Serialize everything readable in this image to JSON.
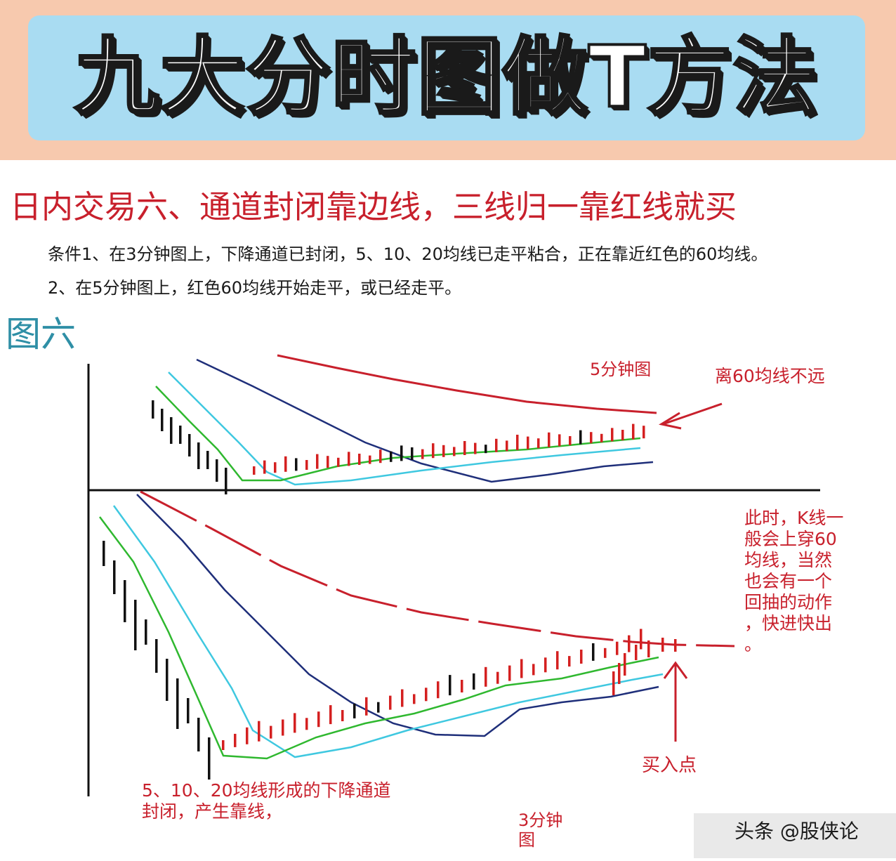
{
  "header": {
    "title": "九大分时图做T方法"
  },
  "subtitle": "日内交易六、通道封闭靠边线，三线归一靠红线就买",
  "conditions": {
    "line1": "条件1、在3分钟图上，下降通道已封闭，5、10、20均线已走平粘合，正在靠近红色的60均线。",
    "line2": "2、在5分钟图上，红色60均线开始走平，或已经走平。"
  },
  "figure_label": "图六",
  "colors": {
    "ma5": "#2fb82f",
    "ma10": "#3fc8e0",
    "ma20": "#1f2f7a",
    "ma60": "#c8202c",
    "candle_up": "#d42020",
    "candle_down": "#111111",
    "annotation": "#c8202c"
  },
  "chart_data": [
    {
      "type": "line",
      "title": "5分钟图",
      "annotations": [
        "离60均线不远"
      ],
      "series_colors": {
        "5/10/20均线": [
          "#2fb82f",
          "#3fc8e0",
          "#1f2f7a"
        ],
        "60均线": "#c8202c"
      }
    },
    {
      "type": "line",
      "title": "3分钟图",
      "annotations": [
        "此时，K线一般会上穿60均线，当然也会有一个回抽的动作，快进快出。",
        "买入点",
        "5、10、20均线形成的下降通道封闭，产生靠线，"
      ],
      "series_colors": {
        "5/10/20均线": [
          "#2fb82f",
          "#3fc8e0",
          "#1f2f7a"
        ],
        "60均线": "#c8202c"
      }
    }
  ],
  "annotations": {
    "top_label": "5分钟图",
    "top_note": "离60均线不远",
    "side_note_lines": [
      "此时，K线一",
      "般会上穿60",
      "均线，当然",
      "也会有一个",
      "回抽的动作",
      "，快进快出",
      "。"
    ],
    "buy_point": "买入点",
    "bottom_note_line1": "5、10、20均线形成的下降通道",
    "bottom_note_line2": "封闭，产生靠线，",
    "bottom_label_line1": "3分钟",
    "bottom_label_line2": "图"
  },
  "watermark": {
    "text": "头条 @股侠论"
  }
}
